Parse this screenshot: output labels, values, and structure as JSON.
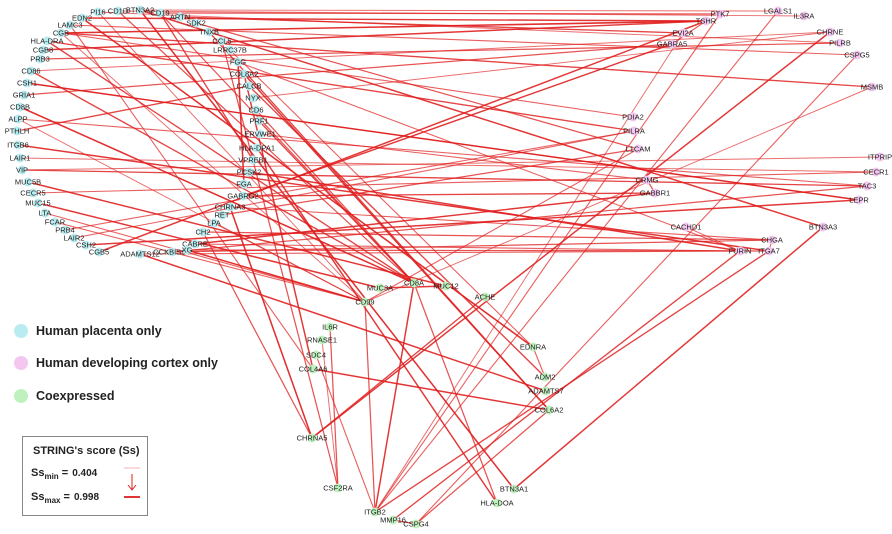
{
  "colors": {
    "placenta": "#b9ecf0",
    "cortex": "#f3c7f0",
    "coexpressed": "#bff1be",
    "edge": "#e01e1e"
  },
  "legend": {
    "placenta": "Human placenta only",
    "cortex": "Human developing cortex only",
    "coexpressed": "Coexpressed"
  },
  "score_box": {
    "title": "STRING's score (Ss)",
    "ss": "Ss",
    "min_sub": "min",
    "max_sub": "max",
    "min_value": "0.404",
    "max_value": "0.998"
  },
  "nodes": [
    {
      "id": "PI16",
      "type": "placenta"
    },
    {
      "id": "CD1D",
      "type": "placenta"
    },
    {
      "id": "BTN3A2",
      "type": "placenta"
    },
    {
      "id": "CD19",
      "type": "placenta"
    },
    {
      "id": "EDN2",
      "type": "placenta"
    },
    {
      "id": "ARTN",
      "type": "placenta"
    },
    {
      "id": "LAMC3",
      "type": "placenta"
    },
    {
      "id": "SDK2",
      "type": "placenta"
    },
    {
      "id": "CGB",
      "type": "placenta"
    },
    {
      "id": "TNXB",
      "type": "placenta"
    },
    {
      "id": "HLA-DRA",
      "type": "placenta"
    },
    {
      "id": "CCL5",
      "type": "placenta"
    },
    {
      "id": "CGB8",
      "type": "placenta"
    },
    {
      "id": "LRRC37B",
      "type": "placenta"
    },
    {
      "id": "PRB3",
      "type": "placenta"
    },
    {
      "id": "FGG",
      "type": "placenta"
    },
    {
      "id": "CD86",
      "type": "placenta"
    },
    {
      "id": "COL8A2",
      "type": "placenta"
    },
    {
      "id": "CSH1",
      "type": "placenta"
    },
    {
      "id": "CALCB",
      "type": "placenta"
    },
    {
      "id": "GRIA1",
      "type": "placenta"
    },
    {
      "id": "NYX",
      "type": "placenta"
    },
    {
      "id": "CD8B",
      "type": "placenta"
    },
    {
      "id": "CD6",
      "type": "placenta"
    },
    {
      "id": "ALPP",
      "type": "placenta"
    },
    {
      "id": "PRF1",
      "type": "placenta"
    },
    {
      "id": "PTHLH",
      "type": "placenta"
    },
    {
      "id": "ERVWE1",
      "type": "placenta"
    },
    {
      "id": "ITGB6",
      "type": "placenta"
    },
    {
      "id": "HLA-DPA1",
      "type": "placenta"
    },
    {
      "id": "LAIR1",
      "type": "placenta"
    },
    {
      "id": "VPREB1",
      "type": "placenta"
    },
    {
      "id": "VIP",
      "type": "placenta"
    },
    {
      "id": "PCSK2",
      "type": "placenta"
    },
    {
      "id": "MUC5B",
      "type": "placenta"
    },
    {
      "id": "FGA",
      "type": "placenta"
    },
    {
      "id": "CECR5",
      "type": "placenta"
    },
    {
      "id": "GABRG2",
      "type": "placenta"
    },
    {
      "id": "MUC15",
      "type": "placenta"
    },
    {
      "id": "CHRNA3",
      "type": "placenta"
    },
    {
      "id": "LTA",
      "type": "placenta"
    },
    {
      "id": "RET",
      "type": "placenta"
    },
    {
      "id": "FCAR",
      "type": "placenta"
    },
    {
      "id": "LPA",
      "type": "placenta"
    },
    {
      "id": "PRB4",
      "type": "placenta"
    },
    {
      "id": "CH2",
      "type": "placenta"
    },
    {
      "id": "LAIR2",
      "type": "placenta"
    },
    {
      "id": "CABRE",
      "type": "placenta"
    },
    {
      "id": "CSH2",
      "type": "placenta"
    },
    {
      "id": "CGB5",
      "type": "placenta"
    },
    {
      "id": "ADAMTS12",
      "type": "placenta"
    },
    {
      "id": "CCKBISST",
      "type": "placenta"
    },
    {
      "id": "XG",
      "type": "placenta"
    },
    {
      "id": "PTK7",
      "type": "cortex"
    },
    {
      "id": "LGALS1",
      "type": "cortex"
    },
    {
      "id": "IL3RA",
      "type": "cortex"
    },
    {
      "id": "TSHR",
      "type": "cortex"
    },
    {
      "id": "EVI2A",
      "type": "cortex"
    },
    {
      "id": "GABRA5",
      "type": "cortex"
    },
    {
      "id": "CHRNE",
      "type": "cortex"
    },
    {
      "id": "PILRB",
      "type": "cortex"
    },
    {
      "id": "CSPG5",
      "type": "cortex"
    },
    {
      "id": "MSMB",
      "type": "cortex"
    },
    {
      "id": "PDIA2",
      "type": "cortex"
    },
    {
      "id": "PILRA",
      "type": "cortex"
    },
    {
      "id": "L1CAM",
      "type": "cortex"
    },
    {
      "id": "ITPRIP",
      "type": "cortex"
    },
    {
      "id": "CECR1",
      "type": "cortex"
    },
    {
      "id": "TAC3",
      "type": "cortex"
    },
    {
      "id": "LEPR",
      "type": "cortex"
    },
    {
      "id": "CRMG",
      "type": "cortex"
    },
    {
      "id": "GABBR1",
      "type": "cortex"
    },
    {
      "id": "BTN3A3",
      "type": "cortex"
    },
    {
      "id": "CACHD1",
      "type": "cortex"
    },
    {
      "id": "CHGA",
      "type": "cortex"
    },
    {
      "id": "FURIN",
      "type": "cortex"
    },
    {
      "id": "ITGA7",
      "type": "cortex"
    },
    {
      "id": "CD8A",
      "type": "coexpressed"
    },
    {
      "id": "MUC12",
      "type": "coexpressed"
    },
    {
      "id": "MUC3A",
      "type": "coexpressed"
    },
    {
      "id": "ACHE",
      "type": "coexpressed"
    },
    {
      "id": "CD99",
      "type": "coexpressed"
    },
    {
      "id": "IL6R",
      "type": "coexpressed"
    },
    {
      "id": "RNASE1",
      "type": "coexpressed"
    },
    {
      "id": "SDC4",
      "type": "coexpressed"
    },
    {
      "id": "COL4A6",
      "type": "coexpressed"
    },
    {
      "id": "EDNRA",
      "type": "coexpressed"
    },
    {
      "id": "ADM2",
      "type": "coexpressed"
    },
    {
      "id": "ADAMTS7",
      "type": "coexpressed"
    },
    {
      "id": "COL6A2",
      "type": "coexpressed"
    },
    {
      "id": "CHRNA5",
      "type": "coexpressed"
    },
    {
      "id": "CSF2RA",
      "type": "coexpressed"
    },
    {
      "id": "BTN3A1",
      "type": "coexpressed"
    },
    {
      "id": "HLA-DOA",
      "type": "coexpressed"
    },
    {
      "id": "ITGB2",
      "type": "coexpressed"
    },
    {
      "id": "MMP16",
      "type": "coexpressed"
    },
    {
      "id": "CSPG4",
      "type": "coexpressed"
    }
  ],
  "edges": [
    [
      "EDN2",
      "TSHR",
      0.9
    ],
    [
      "CD19",
      "PTK7",
      0.7
    ],
    [
      "BTN3A2",
      "LGALS1",
      0.5
    ],
    [
      "ARTN",
      "EVI2A",
      0.8
    ],
    [
      "CD1D",
      "IL3RA",
      0.5
    ],
    [
      "CGB",
      "TSHR",
      0.95
    ],
    [
      "CGB8",
      "TSHR",
      0.9
    ],
    [
      "CGB5",
      "TSHR",
      0.9
    ],
    [
      "CGB",
      "MSMB",
      0.8
    ],
    [
      "LAMC3",
      "CSPG5",
      0.6
    ],
    [
      "PRB3",
      "PILRB",
      0.7
    ],
    [
      "CD86",
      "CHRNE",
      0.5
    ],
    [
      "HLA-DRA",
      "PILRA",
      0.8
    ],
    [
      "CSH1",
      "LEPR",
      0.9
    ],
    [
      "CSH2",
      "LEPR",
      0.9
    ],
    [
      "GRIA1",
      "GABRA5",
      0.7
    ],
    [
      "CD8B",
      "CD8A",
      0.95
    ],
    [
      "ALPP",
      "TAC3",
      0.6
    ],
    [
      "PTHLH",
      "CALCB",
      0.8
    ],
    [
      "ITGB6",
      "ITGA7",
      0.9
    ],
    [
      "LAIR1",
      "CECR1",
      0.5
    ],
    [
      "VIP",
      "ITPRIP",
      0.5
    ],
    [
      "MUC5B",
      "MUC12",
      0.9
    ],
    [
      "CECR5",
      "CECR1",
      0.6
    ],
    [
      "MUC15",
      "MUC3A",
      0.9
    ],
    [
      "LTA",
      "CD99",
      0.6
    ],
    [
      "FCAR",
      "CD99",
      0.6
    ],
    [
      "PRB4",
      "PILRA",
      0.6
    ],
    [
      "LAIR2",
      "PILRA",
      0.6
    ],
    [
      "ADAMTS12",
      "ADAMTS7",
      0.9
    ],
    [
      "XG",
      "CD99",
      0.95
    ],
    [
      "CCKBISST",
      "TAC3",
      0.7
    ],
    [
      "CABRE",
      "GABBR1",
      0.9
    ],
    [
      "CH2",
      "CHRNA5",
      0.7
    ],
    [
      "LPA",
      "CD99",
      0.6
    ],
    [
      "RET",
      "L1CAM",
      0.7
    ],
    [
      "CHRNA3",
      "CHRNA5",
      0.95
    ],
    [
      "GABRG2",
      "GABRA5",
      0.9
    ],
    [
      "FGA",
      "FGG",
      0.95
    ],
    [
      "PCSK2",
      "FURIN",
      0.9
    ],
    [
      "VPREB1",
      "CD19",
      0.8
    ],
    [
      "HLA-DPA1",
      "HLA-DOA",
      0.9
    ],
    [
      "ERVWE1",
      "CRMG",
      0.6
    ],
    [
      "PRF1",
      "CD8A",
      0.8
    ],
    [
      "CD6",
      "CD8A",
      0.7
    ],
    [
      "NYX",
      "CHRNE",
      0.5
    ],
    [
      "CALCB",
      "ADM2",
      0.8
    ],
    [
      "COL8A2",
      "COL6A2",
      0.9
    ],
    [
      "COL8A2",
      "COL4A6",
      0.9
    ],
    [
      "FGG",
      "FURIN",
      0.6
    ],
    [
      "LRRC37B",
      "EDNRA",
      0.6
    ],
    [
      "CCL5",
      "CSF2RA",
      0.7
    ],
    [
      "TNXB",
      "COL6A2",
      0.8
    ],
    [
      "SDK2",
      "L1CAM",
      0.7
    ],
    [
      "CD19",
      "CD8A",
      0.7
    ],
    [
      "PI16",
      "PILRB",
      0.5
    ],
    [
      "EDN2",
      "EDNRA",
      0.95
    ],
    [
      "CD8A",
      "ITGB2",
      0.9
    ],
    [
      "MUC12",
      "MUC3A",
      0.9
    ],
    [
      "ACHE",
      "CHRNA5",
      0.8
    ],
    [
      "IL6R",
      "CSF2RA",
      0.7
    ],
    [
      "SDC4",
      "ITGB2",
      0.6
    ],
    [
      "COL4A6",
      "COL6A2",
      0.9
    ],
    [
      "EDNRA",
      "ADM2",
      0.6
    ],
    [
      "ITGB2",
      "ITGA7",
      0.8
    ],
    [
      "MMP16",
      "CSPG4",
      0.8
    ],
    [
      "CSPG4",
      "COL6A2",
      0.7
    ],
    [
      "BTN3A1",
      "BTN3A3",
      0.9
    ],
    [
      "HLA-DOA",
      "CD8A",
      0.7
    ],
    [
      "ITGB2",
      "CD99",
      0.7
    ],
    [
      "MMP16",
      "FURIN",
      0.8
    ],
    [
      "CHRNA5",
      "CHRNE",
      0.9
    ],
    [
      "CHGA",
      "CHRNA3",
      0.6
    ],
    [
      "FURIN",
      "CACHD1",
      0.5
    ],
    [
      "ITGA7",
      "CHGA",
      0.6
    ],
    [
      "TSHR",
      "GABRA5",
      0.6
    ],
    [
      "L1CAM",
      "CD99",
      0.6
    ],
    [
      "PDIA2",
      "CGB",
      0.6
    ],
    [
      "CRMG",
      "GABBR1",
      0.7
    ],
    [
      "RNASE1",
      "CSF2RA",
      0.5
    ],
    [
      "LEPR",
      "CSH1",
      0.6
    ],
    [
      "TAC3",
      "VIP",
      0.8
    ],
    [
      "BTN3A2",
      "BTN3A1",
      0.95
    ],
    [
      "BTN3A2",
      "BTN3A3",
      0.9
    ],
    [
      "PTK7",
      "ITGB2",
      0.6
    ],
    [
      "XG",
      "ITGA7",
      0.7
    ],
    [
      "CABRE",
      "FURIN",
      0.6
    ],
    [
      "CH2",
      "CHGA",
      0.7
    ],
    [
      "ADAMTS12",
      "FURIN",
      0.6
    ],
    [
      "CCKBISST",
      "CHGA",
      0.7
    ],
    [
      "GABRG2",
      "GABBR1",
      0.8
    ],
    [
      "LGALS1",
      "ITGB2",
      0.6
    ],
    [
      "CSPG5",
      "CSPG4",
      0.6
    ],
    [
      "EVI2A",
      "ITGB2",
      0.5
    ],
    [
      "CD86",
      "CD8A",
      0.8
    ],
    [
      "HLA-DRA",
      "CD8A",
      0.8
    ],
    [
      "CD1D",
      "CD8A",
      0.7
    ],
    [
      "PI16",
      "CD99",
      0.5
    ],
    [
      "LAMC3",
      "COL4A6",
      0.6
    ],
    [
      "CGB",
      "CD99",
      0.5
    ],
    [
      "MSMB",
      "CD99",
      0.5
    ],
    [
      "ALPP",
      "CD99",
      0.5
    ]
  ]
}
